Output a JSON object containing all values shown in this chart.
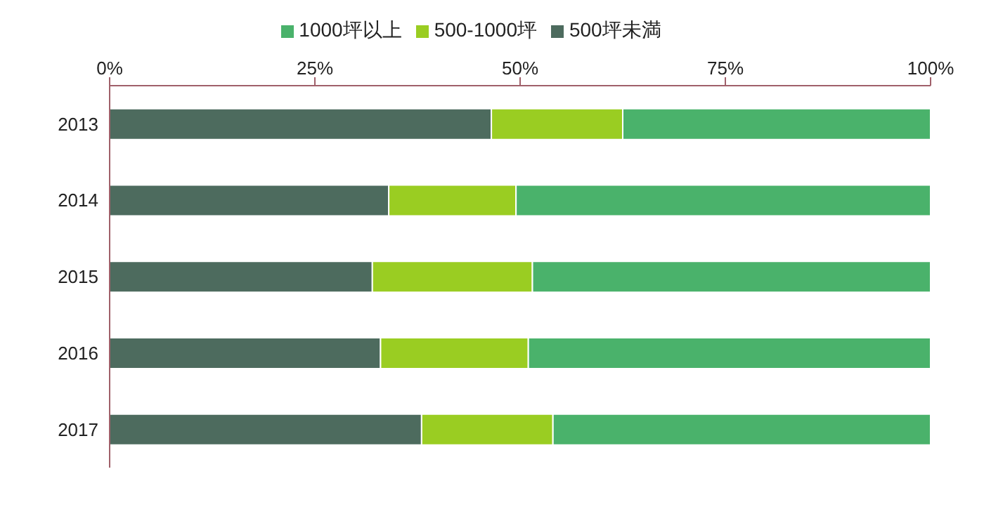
{
  "chart_data": {
    "type": "bar",
    "orientation": "horizontal",
    "stacked": true,
    "categories": [
      "2013",
      "2014",
      "2015",
      "2016",
      "2017"
    ],
    "series": [
      {
        "name": "500坪未満",
        "color": "#4d6b5e",
        "values": [
          46.5,
          34,
          32,
          33,
          38
        ]
      },
      {
        "name": "500-1000坪",
        "color": "#9acd22",
        "values": [
          16,
          15.5,
          19.5,
          18,
          16
        ]
      },
      {
        "name": "1000坪以上",
        "color": "#4ab26b",
        "values": [
          37.5,
          50.5,
          48.5,
          49,
          46
        ]
      }
    ],
    "xlim": [
      0,
      100
    ],
    "xticks": [
      {
        "value": 0,
        "label": "0%"
      },
      {
        "value": 25,
        "label": "25%"
      },
      {
        "value": 50,
        "label": "50%"
      },
      {
        "value": 75,
        "label": "75%"
      },
      {
        "value": 100,
        "label": "100%"
      }
    ],
    "grid": false,
    "legend": "top"
  }
}
